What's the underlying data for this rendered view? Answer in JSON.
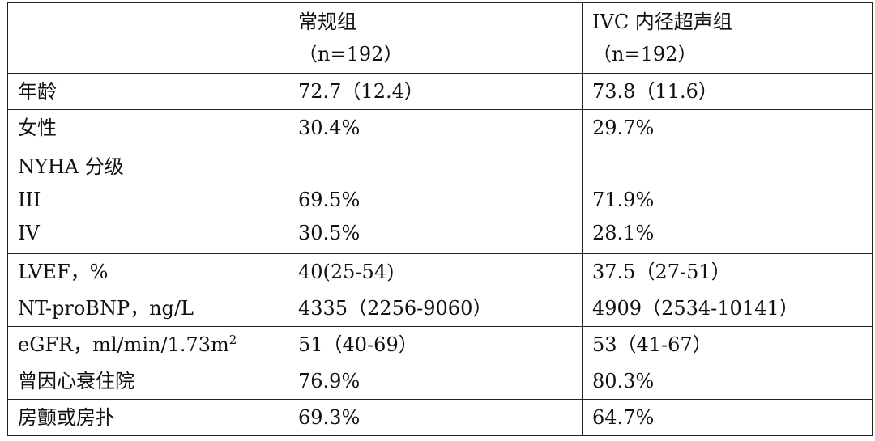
{
  "table": {
    "header": {
      "col1": "",
      "col2_line1": "常规组",
      "col2_line2": "（n=192）",
      "col3_line1": "IVC 内径超声组",
      "col3_line2": "（n=192）"
    },
    "rows": [
      {
        "label": "年龄",
        "group1": "72.7（12.4）",
        "group2": "73.8（11.6）"
      },
      {
        "label": "女性",
        "group1": "30.4%",
        "group2": "29.7%"
      }
    ],
    "nyha": {
      "label": "NYHA 分级",
      "class3_label": "III",
      "class3_group1": "69.5%",
      "class3_group2": "71.9%",
      "class4_label": "IV",
      "class4_group1": "30.5%",
      "class4_group2": "28.1%"
    },
    "rows2": [
      {
        "label": "LVEF，%",
        "group1": "40(25-54)",
        "group2": "37.5（27-51）"
      },
      {
        "label": "NT-proBNP，ng/L",
        "group1": "4335（2256-9060）",
        "group2": "4909（2534-10141）"
      }
    ],
    "egfr": {
      "label_base": "eGFR，ml/min/1.73m",
      "label_sup": "2",
      "group1": "51（40-69）",
      "group2": "53（41-67）"
    },
    "rows3": [
      {
        "label": "曾因心衰住院",
        "group1": "76.9%",
        "group2": "80.3%"
      },
      {
        "label": "房颤或房扑",
        "group1": "69.3%",
        "group2": "64.7%"
      }
    ]
  }
}
